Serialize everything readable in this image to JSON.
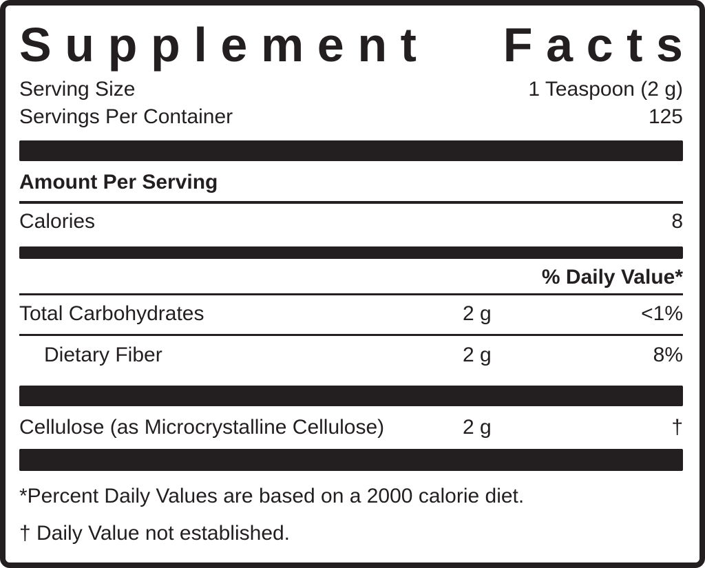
{
  "label": {
    "title_words": [
      "Supplement",
      "Facts"
    ],
    "serving_info": [
      {
        "name": "Serving Size",
        "value": "1 Teaspoon (2 g)"
      },
      {
        "name": "Servings Per Container",
        "value": "125"
      }
    ],
    "amount_per_serving_header": "Amount Per Serving",
    "calories": {
      "name": "Calories",
      "value": "8"
    },
    "daily_value_header": "% Daily Value*",
    "nutrients": [
      {
        "name": "Total Carbohydrates",
        "amount": "2 g",
        "dv": "<1%"
      },
      {
        "name": "Dietary Fiber",
        "amount": "2 g",
        "dv": "8%"
      }
    ],
    "other_ingredients": [
      {
        "name": "Cellulose (as Microcrystalline Cellulose)",
        "amount": "2 g",
        "dv": "†"
      }
    ],
    "footnotes": [
      "*Percent Daily Values are based on a 2000 calorie diet.",
      "† Daily Value not established."
    ],
    "colors": {
      "ink": "#231f20",
      "background": "#ffffff"
    }
  }
}
